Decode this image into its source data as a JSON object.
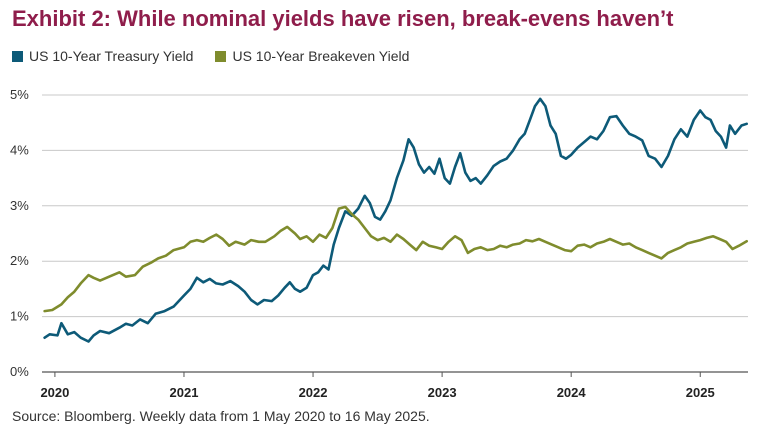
{
  "title": "Exhibit 2: While nominal yields have risen, break-evens haven’t",
  "source": "Source: Bloomberg. Weekly data from 1 May 2020 to 16 May 2025.",
  "colors": {
    "treasury": "#0d5a78",
    "breakeven": "#7f8c2d",
    "title": "#8f1d4b"
  },
  "chart_data": {
    "type": "line",
    "title": "Exhibit 2: While nominal yields have risen, break-evens haven’t",
    "xlabel": "",
    "ylabel": "",
    "xlim": [
      2019.9,
      2025.37
    ],
    "ylim": [
      0,
      5
    ],
    "y_ticks": [
      "0%",
      "1%",
      "2%",
      "3%",
      "4%",
      "5%"
    ],
    "x_ticks": [
      "2020",
      "2021",
      "2022",
      "2023",
      "2024",
      "2025"
    ],
    "grid": true,
    "legend_position": "top-left",
    "series": [
      {
        "name": "US 10-Year Treasury Yield",
        "color": "#0d5a78",
        "points": [
          [
            2019.92,
            0.62
          ],
          [
            2019.96,
            0.68
          ],
          [
            2020.02,
            0.66
          ],
          [
            2020.05,
            0.88
          ],
          [
            2020.1,
            0.68
          ],
          [
            2020.15,
            0.72
          ],
          [
            2020.2,
            0.62
          ],
          [
            2020.26,
            0.55
          ],
          [
            2020.3,
            0.66
          ],
          [
            2020.35,
            0.74
          ],
          [
            2020.42,
            0.7
          ],
          [
            2020.5,
            0.8
          ],
          [
            2020.55,
            0.87
          ],
          [
            2020.6,
            0.84
          ],
          [
            2020.66,
            0.95
          ],
          [
            2020.72,
            0.88
          ],
          [
            2020.78,
            1.05
          ],
          [
            2020.85,
            1.1
          ],
          [
            2020.92,
            1.18
          ],
          [
            2021.0,
            1.38
          ],
          [
            2021.05,
            1.5
          ],
          [
            2021.1,
            1.7
          ],
          [
            2021.15,
            1.62
          ],
          [
            2021.2,
            1.68
          ],
          [
            2021.25,
            1.6
          ],
          [
            2021.3,
            1.58
          ],
          [
            2021.36,
            1.64
          ],
          [
            2021.42,
            1.55
          ],
          [
            2021.47,
            1.45
          ],
          [
            2021.52,
            1.3
          ],
          [
            2021.57,
            1.22
          ],
          [
            2021.62,
            1.3
          ],
          [
            2021.68,
            1.28
          ],
          [
            2021.73,
            1.38
          ],
          [
            2021.78,
            1.52
          ],
          [
            2021.82,
            1.62
          ],
          [
            2021.86,
            1.5
          ],
          [
            2021.9,
            1.45
          ],
          [
            2021.95,
            1.52
          ],
          [
            2022.0,
            1.75
          ],
          [
            2022.04,
            1.8
          ],
          [
            2022.08,
            1.92
          ],
          [
            2022.12,
            1.85
          ],
          [
            2022.16,
            2.3
          ],
          [
            2022.2,
            2.6
          ],
          [
            2022.25,
            2.9
          ],
          [
            2022.3,
            2.82
          ],
          [
            2022.35,
            2.95
          ],
          [
            2022.4,
            3.18
          ],
          [
            2022.44,
            3.05
          ],
          [
            2022.48,
            2.8
          ],
          [
            2022.52,
            2.75
          ],
          [
            2022.56,
            2.9
          ],
          [
            2022.6,
            3.1
          ],
          [
            2022.65,
            3.5
          ],
          [
            2022.7,
            3.82
          ],
          [
            2022.74,
            4.2
          ],
          [
            2022.78,
            4.05
          ],
          [
            2022.82,
            3.75
          ],
          [
            2022.86,
            3.6
          ],
          [
            2022.9,
            3.7
          ],
          [
            2022.94,
            3.58
          ],
          [
            2022.98,
            3.85
          ],
          [
            2023.02,
            3.5
          ],
          [
            2023.06,
            3.4
          ],
          [
            2023.1,
            3.7
          ],
          [
            2023.14,
            3.95
          ],
          [
            2023.18,
            3.6
          ],
          [
            2023.22,
            3.45
          ],
          [
            2023.26,
            3.5
          ],
          [
            2023.3,
            3.4
          ],
          [
            2023.35,
            3.55
          ],
          [
            2023.4,
            3.72
          ],
          [
            2023.45,
            3.8
          ],
          [
            2023.5,
            3.85
          ],
          [
            2023.55,
            4.0
          ],
          [
            2023.6,
            4.2
          ],
          [
            2023.64,
            4.3
          ],
          [
            2023.68,
            4.55
          ],
          [
            2023.72,
            4.8
          ],
          [
            2023.76,
            4.93
          ],
          [
            2023.8,
            4.8
          ],
          [
            2023.84,
            4.45
          ],
          [
            2023.88,
            4.3
          ],
          [
            2023.92,
            3.9
          ],
          [
            2023.96,
            3.85
          ],
          [
            2024.0,
            3.92
          ],
          [
            2024.05,
            4.05
          ],
          [
            2024.1,
            4.15
          ],
          [
            2024.15,
            4.25
          ],
          [
            2024.2,
            4.2
          ],
          [
            2024.25,
            4.35
          ],
          [
            2024.3,
            4.6
          ],
          [
            2024.35,
            4.62
          ],
          [
            2024.4,
            4.45
          ],
          [
            2024.45,
            4.3
          ],
          [
            2024.5,
            4.25
          ],
          [
            2024.55,
            4.18
          ],
          [
            2024.6,
            3.9
          ],
          [
            2024.65,
            3.85
          ],
          [
            2024.7,
            3.7
          ],
          [
            2024.75,
            3.9
          ],
          [
            2024.8,
            4.2
          ],
          [
            2024.85,
            4.38
          ],
          [
            2024.9,
            4.25
          ],
          [
            2024.95,
            4.55
          ],
          [
            2025.0,
            4.72
          ],
          [
            2025.04,
            4.6
          ],
          [
            2025.08,
            4.55
          ],
          [
            2025.12,
            4.35
          ],
          [
            2025.16,
            4.25
          ],
          [
            2025.2,
            4.05
          ],
          [
            2025.23,
            4.45
          ],
          [
            2025.27,
            4.3
          ],
          [
            2025.32,
            4.45
          ],
          [
            2025.36,
            4.48
          ]
        ]
      },
      {
        "name": "US 10-Year Breakeven Yield",
        "color": "#7f8c2d",
        "points": [
          [
            2019.92,
            1.1
          ],
          [
            2019.98,
            1.12
          ],
          [
            2020.05,
            1.22
          ],
          [
            2020.1,
            1.35
          ],
          [
            2020.15,
            1.45
          ],
          [
            2020.2,
            1.6
          ],
          [
            2020.26,
            1.75
          ],
          [
            2020.3,
            1.7
          ],
          [
            2020.35,
            1.65
          ],
          [
            2020.42,
            1.72
          ],
          [
            2020.5,
            1.8
          ],
          [
            2020.55,
            1.72
          ],
          [
            2020.62,
            1.75
          ],
          [
            2020.68,
            1.9
          ],
          [
            2020.75,
            1.98
          ],
          [
            2020.8,
            2.05
          ],
          [
            2020.86,
            2.1
          ],
          [
            2020.92,
            2.2
          ],
          [
            2021.0,
            2.25
          ],
          [
            2021.05,
            2.35
          ],
          [
            2021.1,
            2.38
          ],
          [
            2021.15,
            2.35
          ],
          [
            2021.2,
            2.42
          ],
          [
            2021.25,
            2.48
          ],
          [
            2021.3,
            2.4
          ],
          [
            2021.35,
            2.28
          ],
          [
            2021.4,
            2.35
          ],
          [
            2021.47,
            2.3
          ],
          [
            2021.52,
            2.38
          ],
          [
            2021.58,
            2.35
          ],
          [
            2021.63,
            2.35
          ],
          [
            2021.7,
            2.45
          ],
          [
            2021.75,
            2.55
          ],
          [
            2021.8,
            2.62
          ],
          [
            2021.86,
            2.5
          ],
          [
            2021.9,
            2.4
          ],
          [
            2021.95,
            2.45
          ],
          [
            2022.0,
            2.35
          ],
          [
            2022.05,
            2.48
          ],
          [
            2022.1,
            2.42
          ],
          [
            2022.15,
            2.6
          ],
          [
            2022.2,
            2.95
          ],
          [
            2022.25,
            2.98
          ],
          [
            2022.3,
            2.85
          ],
          [
            2022.35,
            2.75
          ],
          [
            2022.4,
            2.6
          ],
          [
            2022.45,
            2.45
          ],
          [
            2022.5,
            2.38
          ],
          [
            2022.55,
            2.42
          ],
          [
            2022.6,
            2.35
          ],
          [
            2022.65,
            2.48
          ],
          [
            2022.7,
            2.4
          ],
          [
            2022.75,
            2.3
          ],
          [
            2022.8,
            2.2
          ],
          [
            2022.85,
            2.35
          ],
          [
            2022.9,
            2.28
          ],
          [
            2022.95,
            2.25
          ],
          [
            2023.0,
            2.22
          ],
          [
            2023.05,
            2.35
          ],
          [
            2023.1,
            2.45
          ],
          [
            2023.15,
            2.38
          ],
          [
            2023.2,
            2.15
          ],
          [
            2023.25,
            2.22
          ],
          [
            2023.3,
            2.25
          ],
          [
            2023.35,
            2.2
          ],
          [
            2023.4,
            2.22
          ],
          [
            2023.45,
            2.28
          ],
          [
            2023.5,
            2.25
          ],
          [
            2023.55,
            2.3
          ],
          [
            2023.6,
            2.32
          ],
          [
            2023.65,
            2.38
          ],
          [
            2023.7,
            2.36
          ],
          [
            2023.75,
            2.4
          ],
          [
            2023.8,
            2.35
          ],
          [
            2023.85,
            2.3
          ],
          [
            2023.9,
            2.25
          ],
          [
            2023.95,
            2.2
          ],
          [
            2024.0,
            2.18
          ],
          [
            2024.05,
            2.28
          ],
          [
            2024.1,
            2.3
          ],
          [
            2024.15,
            2.25
          ],
          [
            2024.2,
            2.32
          ],
          [
            2024.25,
            2.35
          ],
          [
            2024.3,
            2.4
          ],
          [
            2024.35,
            2.35
          ],
          [
            2024.4,
            2.3
          ],
          [
            2024.45,
            2.32
          ],
          [
            2024.5,
            2.25
          ],
          [
            2024.55,
            2.2
          ],
          [
            2024.6,
            2.15
          ],
          [
            2024.65,
            2.1
          ],
          [
            2024.7,
            2.05
          ],
          [
            2024.75,
            2.15
          ],
          [
            2024.8,
            2.2
          ],
          [
            2024.85,
            2.25
          ],
          [
            2024.9,
            2.32
          ],
          [
            2024.95,
            2.35
          ],
          [
            2025.0,
            2.38
          ],
          [
            2025.05,
            2.42
          ],
          [
            2025.1,
            2.45
          ],
          [
            2025.15,
            2.4
          ],
          [
            2025.2,
            2.35
          ],
          [
            2025.25,
            2.22
          ],
          [
            2025.3,
            2.28
          ],
          [
            2025.36,
            2.36
          ]
        ]
      }
    ]
  }
}
